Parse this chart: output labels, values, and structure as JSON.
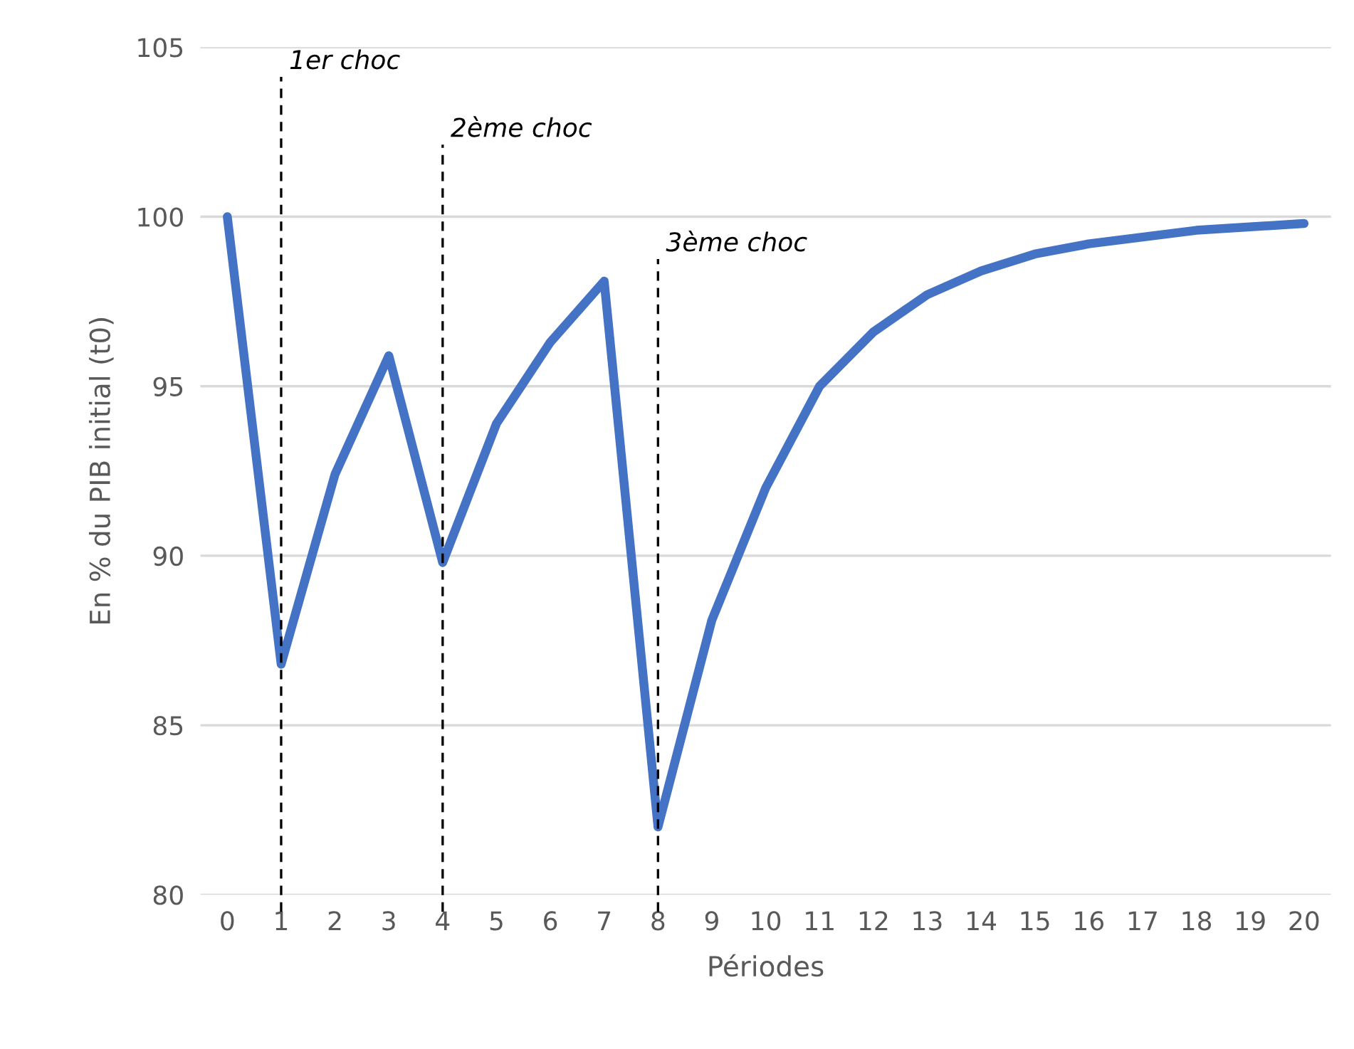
{
  "chart_data": {
    "type": "line",
    "xlabel": "Périodes",
    "ylabel": "En % du PIB initial (t0)",
    "x": [
      0,
      1,
      2,
      3,
      4,
      5,
      6,
      7,
      8,
      9,
      10,
      11,
      12,
      13,
      14,
      15,
      16,
      17,
      18,
      19,
      20
    ],
    "series": [
      {
        "color": "#4472c4",
        "values": [
          100,
          86.8,
          92.4,
          95.9,
          89.8,
          93.9,
          96.3,
          98.1,
          82.0,
          88.1,
          92.0,
          95.0,
          96.6,
          97.7,
          98.4,
          98.9,
          99.2,
          99.4,
          99.6,
          99.7,
          99.8
        ]
      }
    ],
    "xlim": [
      -0.5,
      20.5
    ],
    "xticks": [
      0,
      1,
      2,
      3,
      4,
      5,
      6,
      7,
      8,
      9,
      10,
      11,
      12,
      13,
      14,
      15,
      16,
      17,
      18,
      19,
      20
    ],
    "ylim": [
      80,
      105
    ],
    "yticks": [
      80,
      85,
      90,
      95,
      100,
      105
    ],
    "grid": "y",
    "legend": false,
    "ref_lines": [
      {
        "axis": "x",
        "value": 1,
        "label": "1er choc",
        "color": "#000000",
        "line_style": "dashed"
      },
      {
        "axis": "x",
        "value": 4,
        "label": "2ème choc",
        "color": "#000000",
        "line_style": "dashed"
      },
      {
        "axis": "x",
        "value": 8,
        "label": "3ème choc",
        "color": "#000000",
        "line_style": "dashed"
      }
    ]
  }
}
